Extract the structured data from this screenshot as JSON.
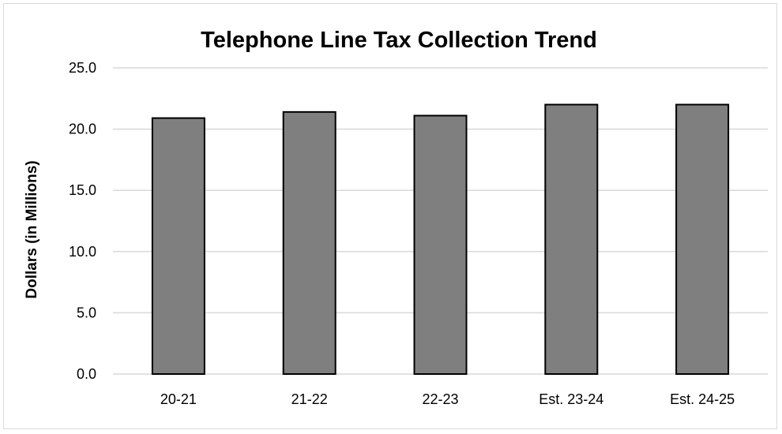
{
  "chart_data": {
    "type": "bar",
    "title": "Telephone Line Tax Collection Trend",
    "xlabel": "",
    "ylabel": "Dollars (in Millions)",
    "categories": [
      "20-21",
      "21-22",
      "22-23",
      "Est. 23-24",
      "Est. 24-25"
    ],
    "values": [
      20.9,
      21.4,
      21.1,
      22.0,
      22.0
    ],
    "ylim": [
      0,
      25
    ],
    "yticks": [
      "0.0",
      "5.0",
      "10.0",
      "15.0",
      "20.0",
      "25.0"
    ],
    "grid": true,
    "legend": "none",
    "bar_color": "#7f7f7f",
    "bar_edge_color": "#000000"
  }
}
